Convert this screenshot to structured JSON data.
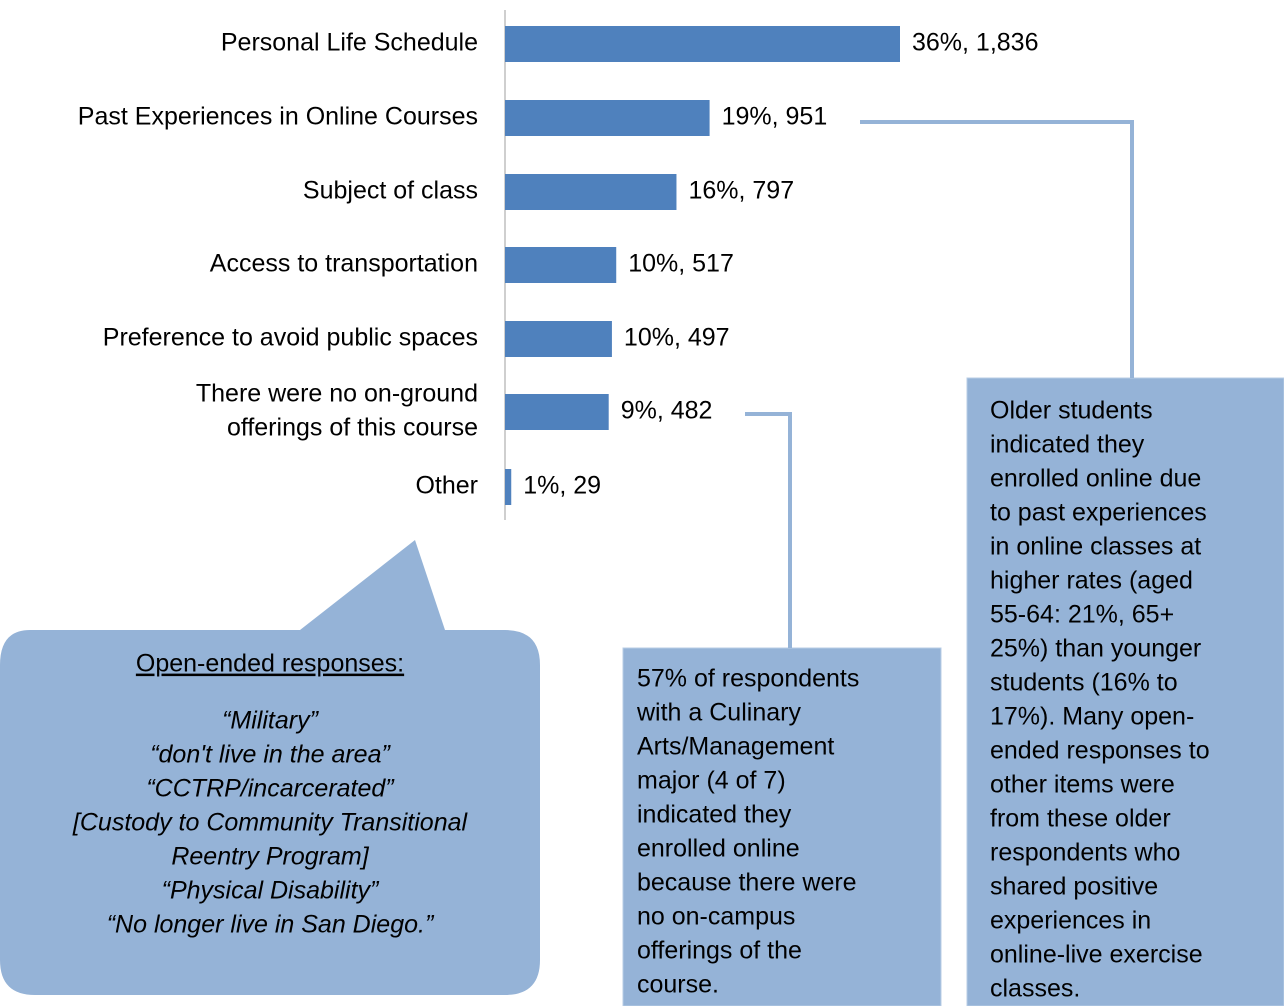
{
  "chart_data": {
    "type": "bar",
    "orientation": "horizontal",
    "categories": [
      "Personal Life Schedule",
      "Past Experiences in Online Courses",
      "Subject of class",
      "Access to transportation",
      "Preference to avoid public spaces",
      [
        "There were no on-ground",
        "offerings of this course"
      ],
      "Other"
    ],
    "values": [
      1836,
      951,
      797,
      517,
      497,
      482,
      29
    ],
    "value_labels": [
      "36%, 1,836",
      "19%, 951",
      "16%, 797",
      "10%, 517",
      "10%, 497",
      "9%, 482",
      "1%, 29"
    ],
    "color": "#4f81bd",
    "annotations": [
      {
        "heading": "Open-ended responses:",
        "lines": [
          "“Military”",
          "“don't live in the area”",
          "“CCTRP/incarcerated”",
          "[Custody to Community Transitional",
          "Reentry Program]",
          "“Physical Disability”",
          "“No longer live in San Diego.”"
        ]
      },
      {
        "lines": [
          "57% of respondents",
          "with a Culinary",
          "Arts/Management",
          "major (4 of 7)",
          "indicated they",
          "enrolled online",
          "because there were",
          "no on-campus",
          "offerings of the",
          "course."
        ]
      },
      {
        "lines": [
          "Older students",
          "indicated they",
          "enrolled online due",
          "to past experiences",
          "in online classes at",
          "higher rates (aged",
          "55-64: 21%, 65+",
          "25%) than younger",
          "students (16% to",
          "17%). Many open-",
          "ended responses to",
          "other items were",
          "from these older",
          "respondents who",
          "shared positive",
          "experiences in",
          "online-live exercise",
          "classes."
        ]
      }
    ]
  }
}
